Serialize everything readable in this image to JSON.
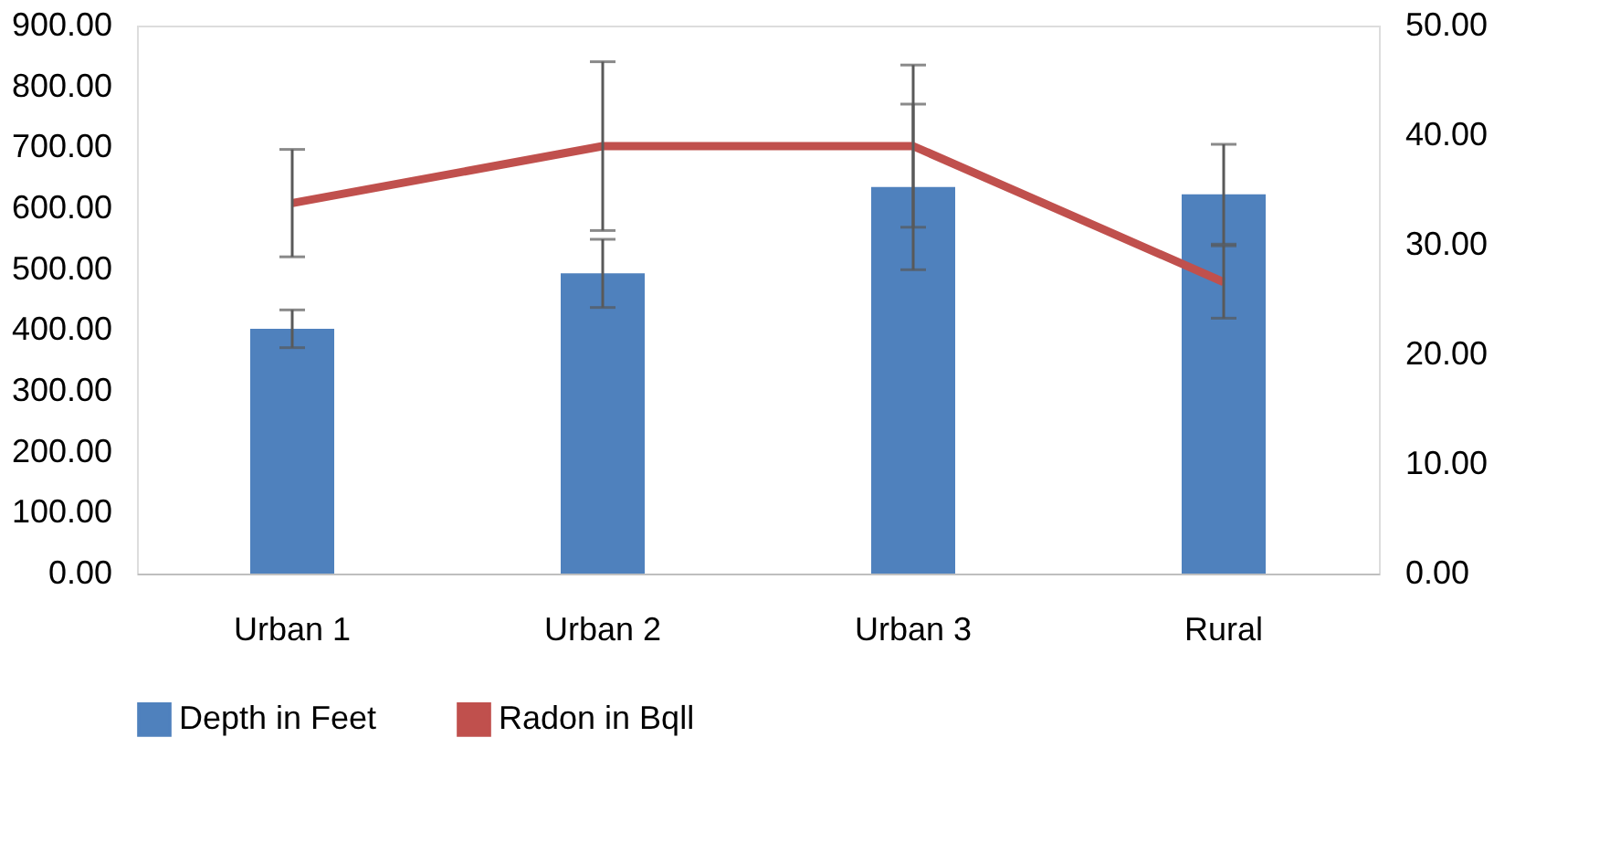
{
  "chart_data": {
    "type": "bar",
    "categories": [
      "Urban 1",
      "Urban 2",
      "Urban 3",
      "Rural"
    ],
    "series": [
      {
        "name": "Depth in Feet",
        "type": "bar",
        "color": "#4f81bd",
        "values": [
          402,
          493,
          635,
          623
        ],
        "errors": [
          31,
          56,
          136,
          82
        ]
      },
      {
        "name": "Radon in Bqll",
        "type": "line",
        "axis": "y2",
        "color": "#c0504d",
        "values": [
          33.8,
          39.0,
          39.0,
          26.6
        ],
        "errors": [
          4.9,
          7.7,
          7.4,
          3.3
        ]
      }
    ],
    "ylim": [
      0,
      900
    ],
    "yticks": [
      {
        "value": 0,
        "label": "0.00"
      },
      {
        "value": 100,
        "label": "100.00"
      },
      {
        "value": 200,
        "label": "200.00"
      },
      {
        "value": 300,
        "label": "300.00"
      },
      {
        "value": 400,
        "label": "400.00"
      },
      {
        "value": 500,
        "label": "500.00"
      },
      {
        "value": 600,
        "label": "600.00"
      },
      {
        "value": 700,
        "label": "700.00"
      },
      {
        "value": 800,
        "label": "800.00"
      },
      {
        "value": 900,
        "label": "900.00"
      }
    ],
    "y2lim": [
      0,
      50
    ],
    "y2ticks": [
      {
        "value": 0,
        "label": "0.00"
      },
      {
        "value": 10,
        "label": "10.00"
      },
      {
        "value": 20,
        "label": "20.00"
      },
      {
        "value": 30,
        "label": "30.00"
      },
      {
        "value": 40,
        "label": "40.00"
      },
      {
        "value": 50,
        "label": "50.00"
      }
    ],
    "grid": false,
    "legend": "bottom",
    "marker": "none",
    "line_style": "solid"
  }
}
